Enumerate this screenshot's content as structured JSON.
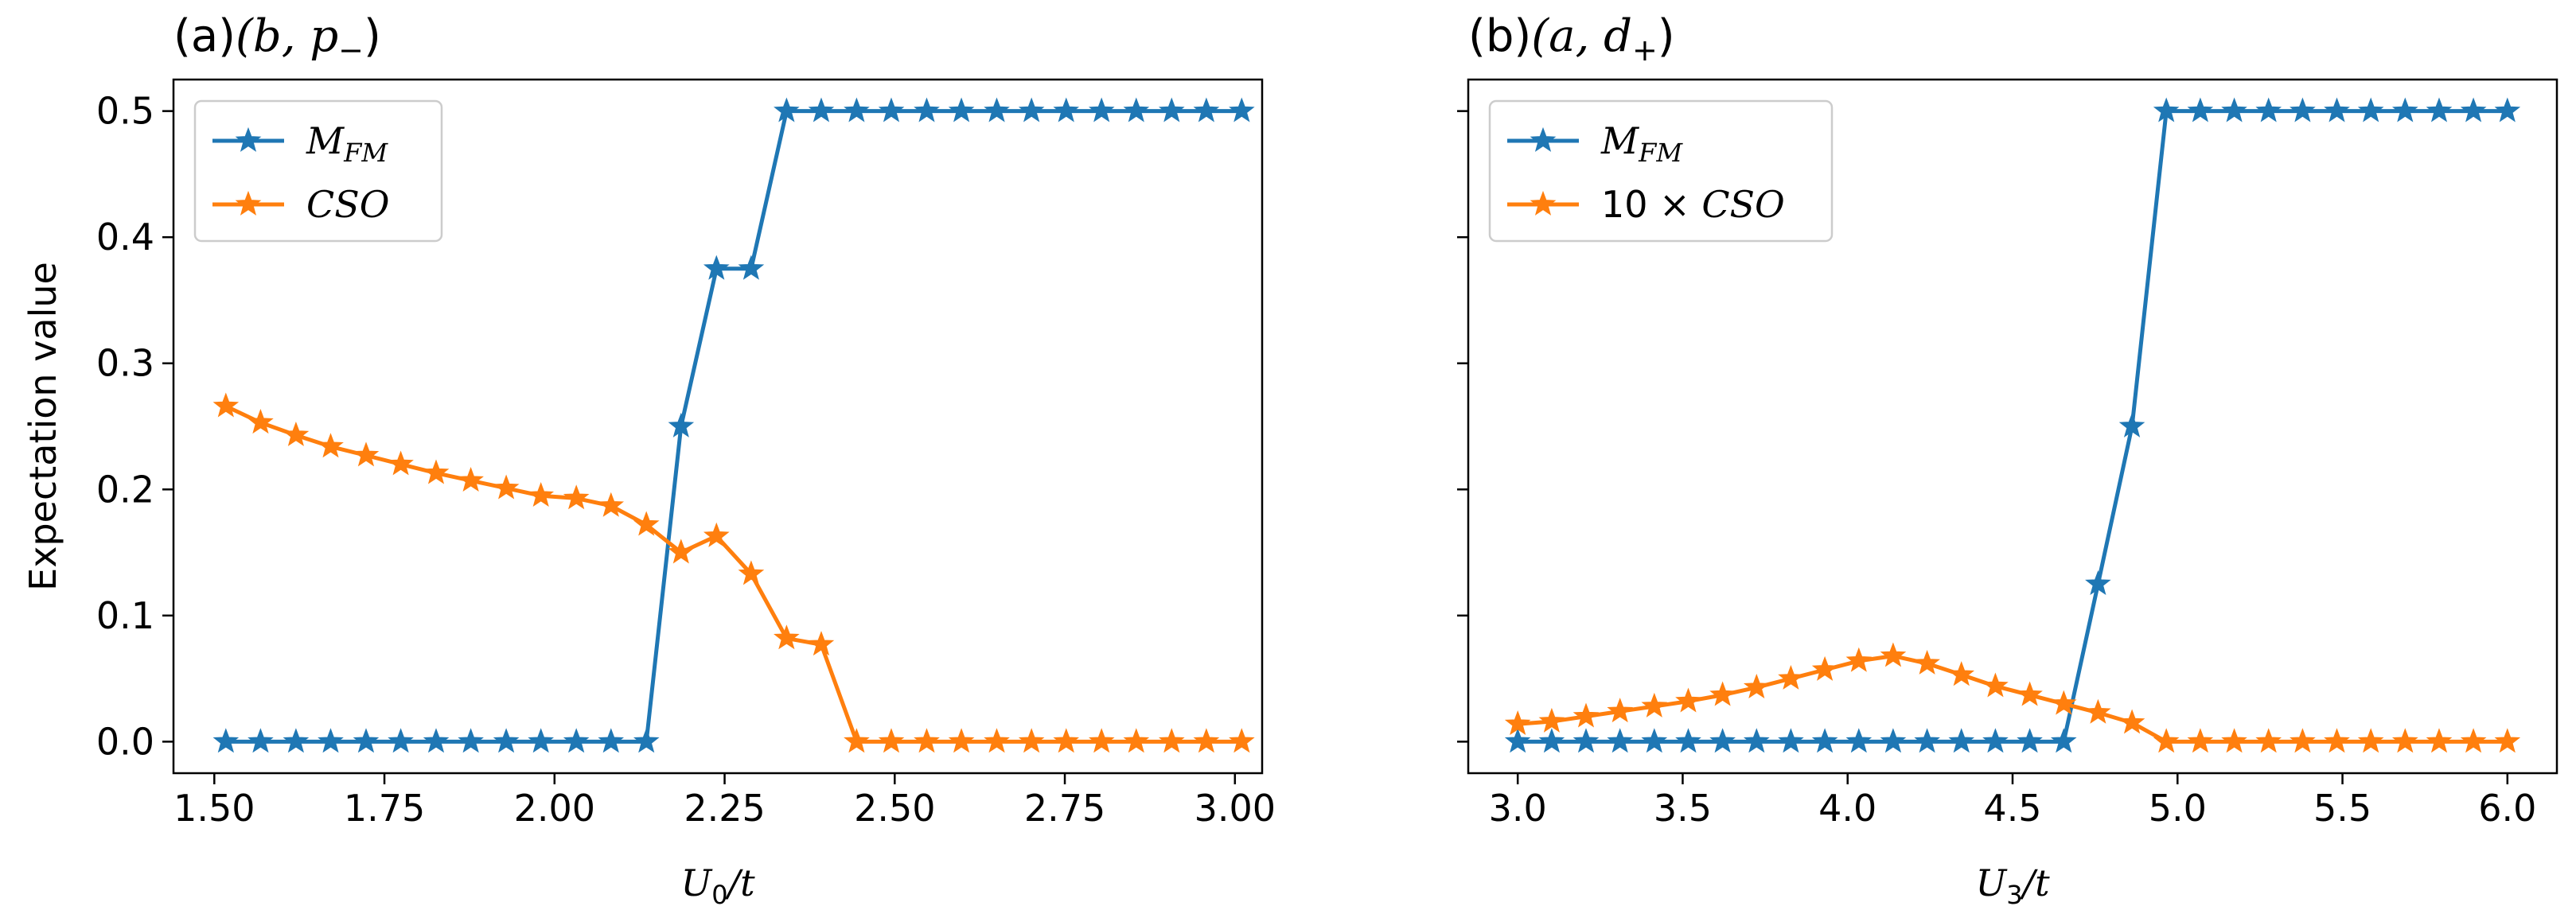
{
  "chart_data": [
    {
      "type": "line",
      "title": "(a)(b, p−)",
      "title_prefix": "(a)",
      "title_math": "(b, p",
      "title_sub": "−",
      "title_close": ")",
      "xlabel_var": "U",
      "xlabel_sub": "0",
      "xlabel_rest": "/t",
      "ylabel": "Expectation value",
      "xlim": [
        1.44,
        3.04
      ],
      "ylim": [
        -0.025,
        0.525
      ],
      "xticks": [
        1.5,
        1.75,
        2.0,
        2.25,
        2.5,
        2.75,
        3.0
      ],
      "xtick_labels": [
        "1.50",
        "1.75",
        "2.00",
        "2.25",
        "2.50",
        "2.75",
        "3.00"
      ],
      "yticks": [
        0.0,
        0.1,
        0.2,
        0.3,
        0.4,
        0.5
      ],
      "ytick_labels": [
        "0.0",
        "0.1",
        "0.2",
        "0.3",
        "0.4",
        "0.5"
      ],
      "legend_location": "top-left",
      "series": [
        {
          "name": "M_FM",
          "legend_var": "M",
          "legend_sub": "FM",
          "legend_prefix": "",
          "color": "#1f77b4",
          "x": [
            1.517,
            1.568,
            1.62,
            1.671,
            1.723,
            1.774,
            1.826,
            1.877,
            1.929,
            1.98,
            2.032,
            2.083,
            2.135,
            2.186,
            2.238,
            2.289,
            2.341,
            2.392,
            2.444,
            2.495,
            2.547,
            2.598,
            2.65,
            2.701,
            2.752,
            2.804,
            2.855,
            2.907,
            2.958,
            3.01
          ],
          "y": [
            0,
            0,
            0,
            0,
            0,
            0,
            0,
            0,
            0,
            0,
            0,
            0,
            0,
            0.25,
            0.375,
            0.375,
            0.5,
            0.5,
            0.5,
            0.5,
            0.5,
            0.5,
            0.5,
            0.5,
            0.5,
            0.5,
            0.5,
            0.5,
            0.5,
            0.5
          ]
        },
        {
          "name": "CSO",
          "legend_var": "CSO",
          "legend_sub": "",
          "legend_prefix": "",
          "color": "#ff7f0e",
          "x": [
            1.517,
            1.568,
            1.62,
            1.671,
            1.723,
            1.774,
            1.826,
            1.877,
            1.929,
            1.98,
            2.032,
            2.083,
            2.135,
            2.186,
            2.238,
            2.289,
            2.341,
            2.392,
            2.444,
            2.495,
            2.547,
            2.598,
            2.65,
            2.701,
            2.752,
            2.804,
            2.855,
            2.907,
            2.958,
            3.01
          ],
          "y": [
            0.266,
            0.253,
            0.243,
            0.234,
            0.227,
            0.22,
            0.213,
            0.207,
            0.201,
            0.195,
            0.193,
            0.187,
            0.172,
            0.15,
            0.163,
            0.133,
            0.082,
            0.077,
            0,
            0,
            0,
            0,
            0,
            0,
            0,
            0,
            0,
            0,
            0,
            0
          ]
        }
      ]
    },
    {
      "type": "line",
      "title": "(b)(a, d+)",
      "title_prefix": "(b)",
      "title_math": "(a, d",
      "title_sub": "+",
      "title_close": ")",
      "xlabel_var": "U",
      "xlabel_sub": "3",
      "xlabel_rest": "/t",
      "ylabel": "",
      "xlim": [
        2.85,
        6.15
      ],
      "ylim": [
        -0.025,
        0.525
      ],
      "xticks": [
        3.0,
        3.5,
        4.0,
        4.5,
        5.0,
        5.5,
        6.0
      ],
      "xtick_labels": [
        "3.0",
        "3.5",
        "4.0",
        "4.5",
        "5.0",
        "5.5",
        "6.0"
      ],
      "yticks": [
        0.0,
        0.1,
        0.2,
        0.3,
        0.4,
        0.5
      ],
      "ytick_labels": [],
      "legend_location": "top-left",
      "series": [
        {
          "name": "M_FM",
          "legend_var": "M",
          "legend_sub": "FM",
          "legend_prefix": "",
          "color": "#1f77b4",
          "x": [
            3.0,
            3.103,
            3.207,
            3.31,
            3.414,
            3.517,
            3.621,
            3.724,
            3.828,
            3.931,
            4.034,
            4.138,
            4.241,
            4.345,
            4.448,
            4.552,
            4.655,
            4.759,
            4.862,
            4.966,
            5.069,
            5.172,
            5.276,
            5.379,
            5.483,
            5.586,
            5.69,
            5.793,
            5.897,
            6.0
          ],
          "y": [
            0,
            0,
            0,
            0,
            0,
            0,
            0,
            0,
            0,
            0,
            0,
            0,
            0,
            0,
            0,
            0,
            0,
            0.125,
            0.25,
            0.5,
            0.5,
            0.5,
            0.5,
            0.5,
            0.5,
            0.5,
            0.5,
            0.5,
            0.5,
            0.5
          ]
        },
        {
          "name": "10 × CSO",
          "legend_var": "CSO",
          "legend_sub": "",
          "legend_prefix": "10 × ",
          "color": "#ff7f0e",
          "x": [
            3.0,
            3.103,
            3.207,
            3.31,
            3.414,
            3.517,
            3.621,
            3.724,
            3.828,
            3.931,
            4.034,
            4.138,
            4.241,
            4.345,
            4.448,
            4.552,
            4.655,
            4.759,
            4.862,
            4.966,
            5.069,
            5.172,
            5.276,
            5.379,
            5.483,
            5.586,
            5.69,
            5.793,
            5.897,
            6.0
          ],
          "y": [
            0.014,
            0.016,
            0.02,
            0.024,
            0.028,
            0.032,
            0.037,
            0.043,
            0.05,
            0.057,
            0.064,
            0.068,
            0.062,
            0.053,
            0.044,
            0.037,
            0.03,
            0.023,
            0.015,
            0,
            0,
            0,
            0,
            0,
            0,
            0,
            0,
            0,
            0,
            0
          ]
        }
      ]
    }
  ]
}
